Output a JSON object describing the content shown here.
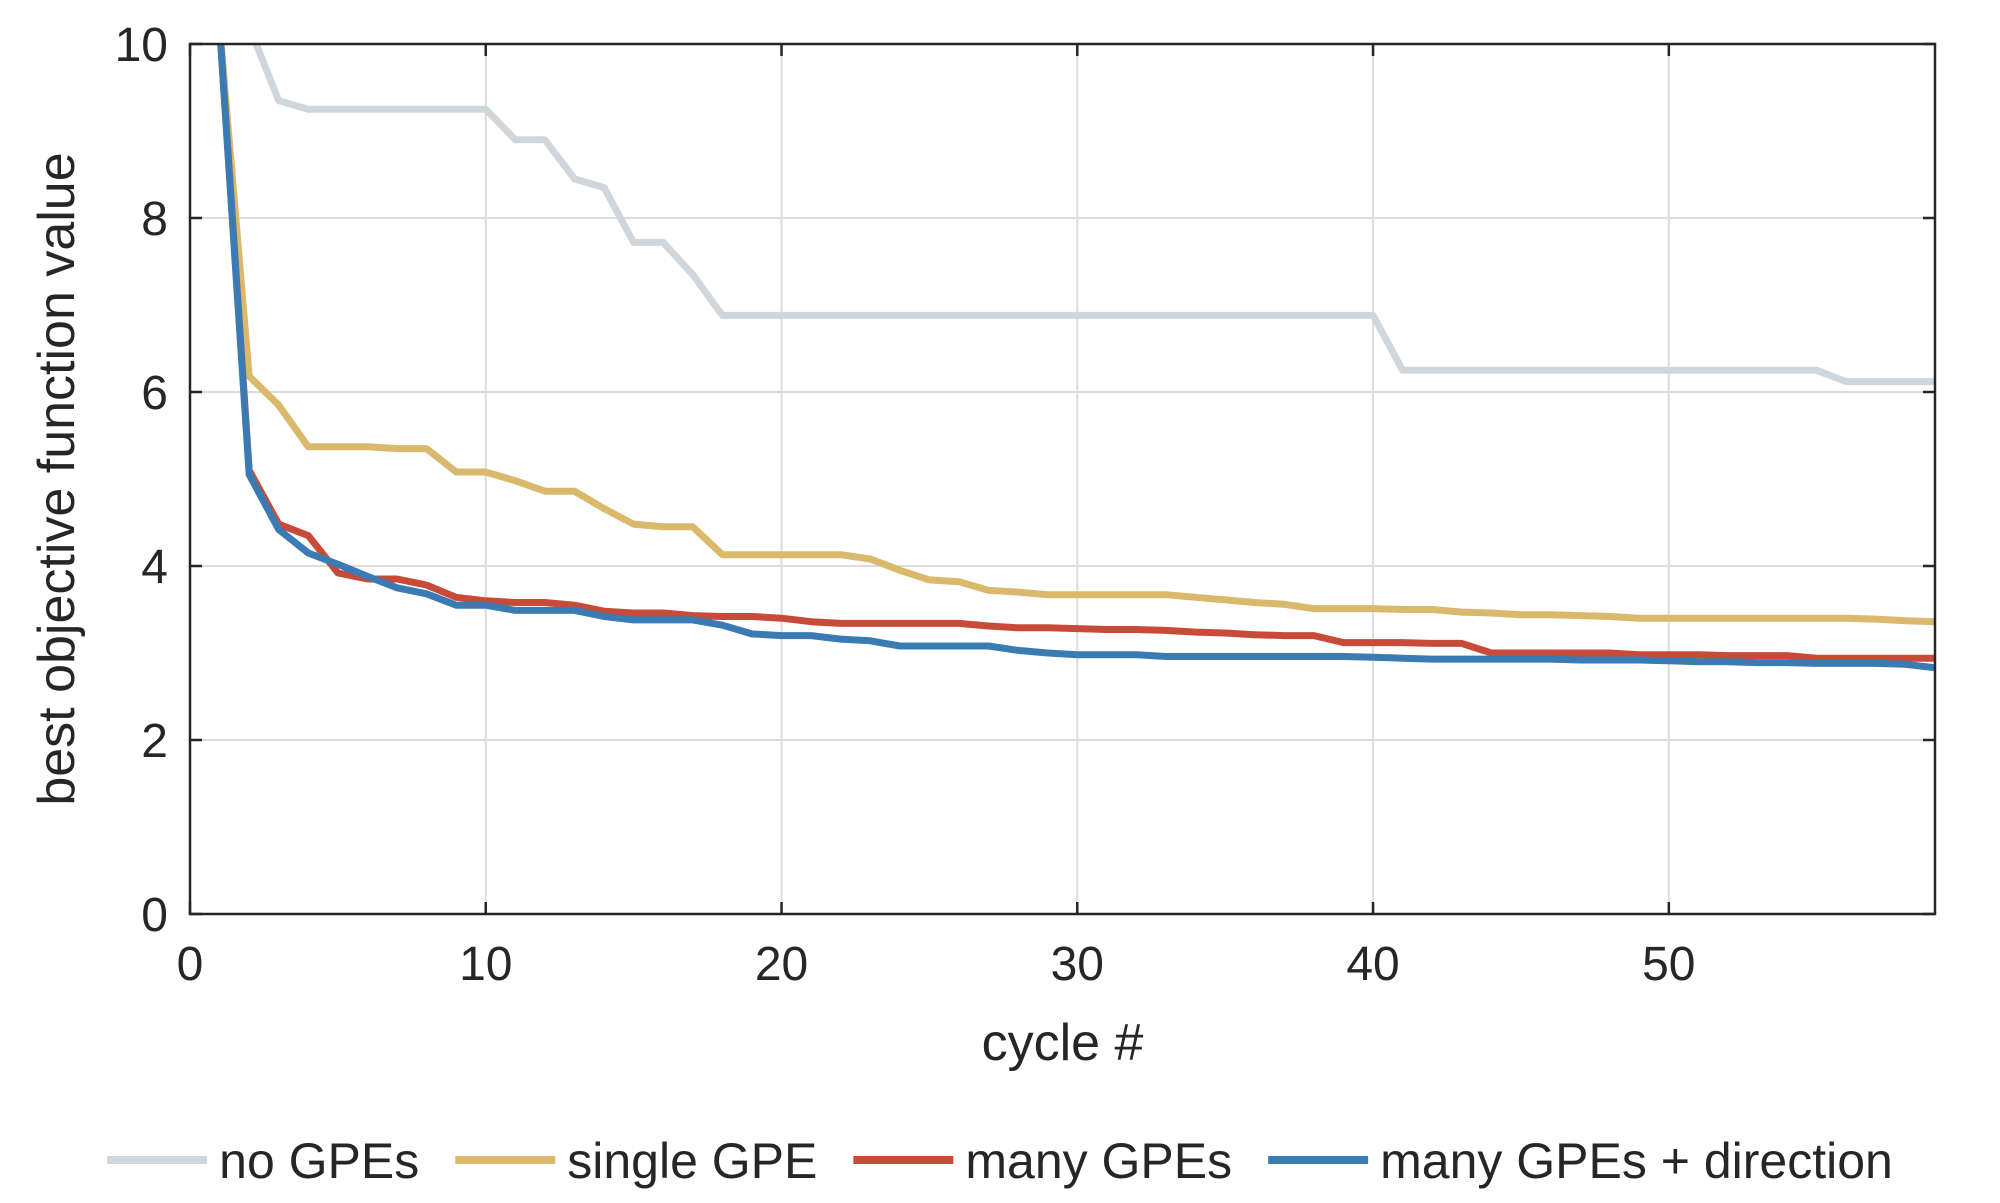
{
  "chart_data": {
    "type": "line",
    "title": "",
    "xlabel": "cycle #",
    "ylabel": "best objective function value",
    "xlim": [
      0,
      59
    ],
    "ylim": [
      0,
      10
    ],
    "xticks": [
      0,
      10,
      20,
      30,
      40,
      50
    ],
    "yticks": [
      0,
      2,
      4,
      6,
      8,
      10
    ],
    "grid": true,
    "legend_position": "bottom",
    "x": [
      1,
      2,
      3,
      4,
      5,
      6,
      7,
      8,
      9,
      10,
      11,
      12,
      13,
      14,
      15,
      16,
      17,
      18,
      19,
      20,
      21,
      22,
      23,
      24,
      25,
      26,
      27,
      28,
      29,
      30,
      31,
      32,
      33,
      34,
      35,
      36,
      37,
      38,
      39,
      40,
      41,
      42,
      43,
      44,
      45,
      46,
      47,
      48,
      49,
      50,
      51,
      52,
      53,
      54,
      55,
      56,
      57,
      58,
      59
    ],
    "series": [
      {
        "name": "no GPEs",
        "color": "#d0d7dc",
        "values": [
          10.2,
          10.2,
          9.35,
          9.25,
          9.25,
          9.25,
          9.25,
          9.25,
          9.25,
          9.25,
          8.9,
          8.9,
          8.45,
          8.35,
          7.72,
          7.72,
          7.35,
          6.88,
          6.88,
          6.88,
          6.88,
          6.88,
          6.88,
          6.88,
          6.88,
          6.88,
          6.88,
          6.88,
          6.88,
          6.88,
          6.88,
          6.88,
          6.88,
          6.88,
          6.88,
          6.88,
          6.88,
          6.88,
          6.88,
          6.88,
          6.25,
          6.25,
          6.25,
          6.25,
          6.25,
          6.25,
          6.25,
          6.25,
          6.25,
          6.25,
          6.25,
          6.25,
          6.25,
          6.25,
          6.25,
          6.12,
          6.12,
          6.12,
          6.12
        ]
      },
      {
        "name": "single GPE",
        "color": "#dbb96c",
        "values": [
          10.2,
          6.18,
          5.85,
          5.37,
          5.37,
          5.37,
          5.35,
          5.35,
          5.08,
          5.08,
          4.98,
          4.86,
          4.86,
          4.66,
          4.48,
          4.45,
          4.45,
          4.13,
          4.13,
          4.13,
          4.13,
          4.13,
          4.08,
          3.95,
          3.84,
          3.82,
          3.72,
          3.7,
          3.67,
          3.67,
          3.67,
          3.67,
          3.67,
          3.64,
          3.61,
          3.58,
          3.56,
          3.51,
          3.51,
          3.51,
          3.5,
          3.5,
          3.47,
          3.46,
          3.44,
          3.44,
          3.43,
          3.42,
          3.4,
          3.4,
          3.4,
          3.4,
          3.4,
          3.4,
          3.4,
          3.4,
          3.39,
          3.37,
          3.36
        ]
      },
      {
        "name": "many GPEs",
        "color": "#c84b39",
        "values": [
          10.2,
          5.1,
          4.48,
          4.35,
          3.92,
          3.85,
          3.85,
          3.78,
          3.64,
          3.6,
          3.58,
          3.58,
          3.55,
          3.48,
          3.46,
          3.46,
          3.43,
          3.42,
          3.42,
          3.4,
          3.36,
          3.34,
          3.34,
          3.34,
          3.34,
          3.34,
          3.31,
          3.29,
          3.29,
          3.28,
          3.27,
          3.27,
          3.26,
          3.24,
          3.23,
          3.21,
          3.2,
          3.2,
          3.12,
          3.12,
          3.12,
          3.11,
          3.11,
          3.0,
          3.0,
          3.0,
          3.0,
          3.0,
          2.98,
          2.98,
          2.98,
          2.97,
          2.97,
          2.97,
          2.94,
          2.94,
          2.94,
          2.94,
          2.94
        ]
      },
      {
        "name": "many GPEs + direction",
        "color": "#3b7bb4",
        "values": [
          10.2,
          5.05,
          4.42,
          4.15,
          4.02,
          3.88,
          3.75,
          3.68,
          3.55,
          3.55,
          3.49,
          3.49,
          3.49,
          3.42,
          3.38,
          3.38,
          3.38,
          3.32,
          3.22,
          3.2,
          3.2,
          3.16,
          3.14,
          3.08,
          3.08,
          3.08,
          3.08,
          3.03,
          3.0,
          2.98,
          2.98,
          2.98,
          2.96,
          2.96,
          2.96,
          2.96,
          2.96,
          2.96,
          2.96,
          2.95,
          2.94,
          2.93,
          2.93,
          2.93,
          2.93,
          2.93,
          2.92,
          2.92,
          2.92,
          2.91,
          2.9,
          2.9,
          2.89,
          2.89,
          2.88,
          2.88,
          2.88,
          2.87,
          2.83
        ]
      }
    ]
  }
}
